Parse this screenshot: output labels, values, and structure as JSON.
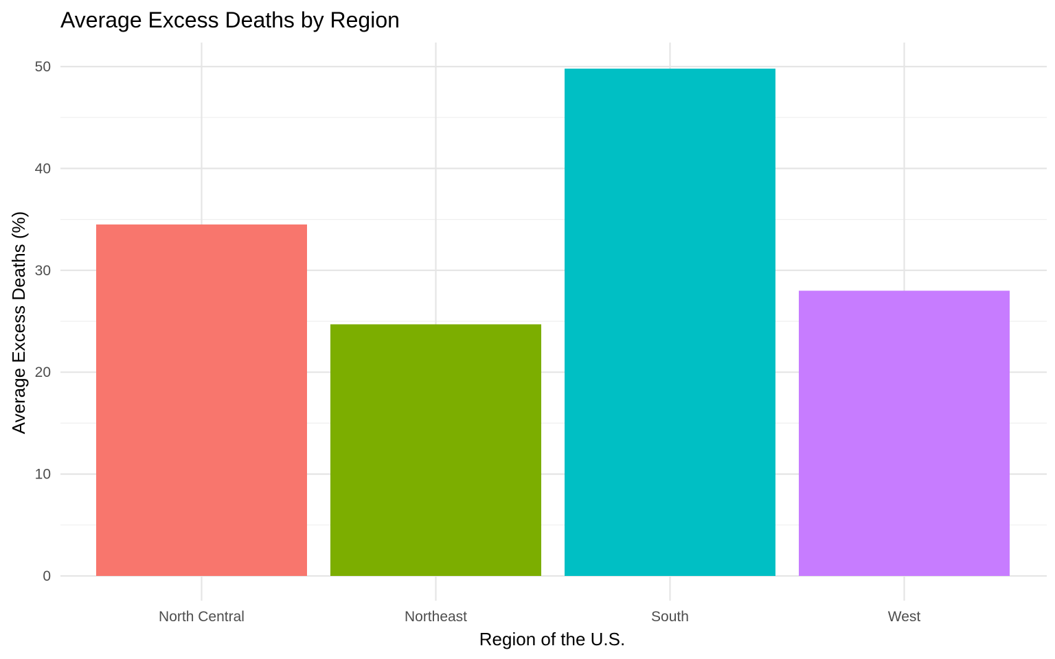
{
  "chart_data": {
    "type": "bar",
    "title": "Average Excess Deaths by Region",
    "xlabel": "Region of the U.S.",
    "ylabel": "Average Excess Deaths (%)",
    "categories": [
      "North Central",
      "Northeast",
      "South",
      "West"
    ],
    "values": [
      34.5,
      24.7,
      49.8,
      28.0
    ],
    "colors": [
      "#F8766D",
      "#7CAE00",
      "#00BFC4",
      "#C77CFF"
    ],
    "ylim": [
      0,
      52.3
    ],
    "yticks": [
      0,
      10,
      20,
      30,
      40,
      50
    ],
    "grid": true,
    "legend": "none"
  }
}
